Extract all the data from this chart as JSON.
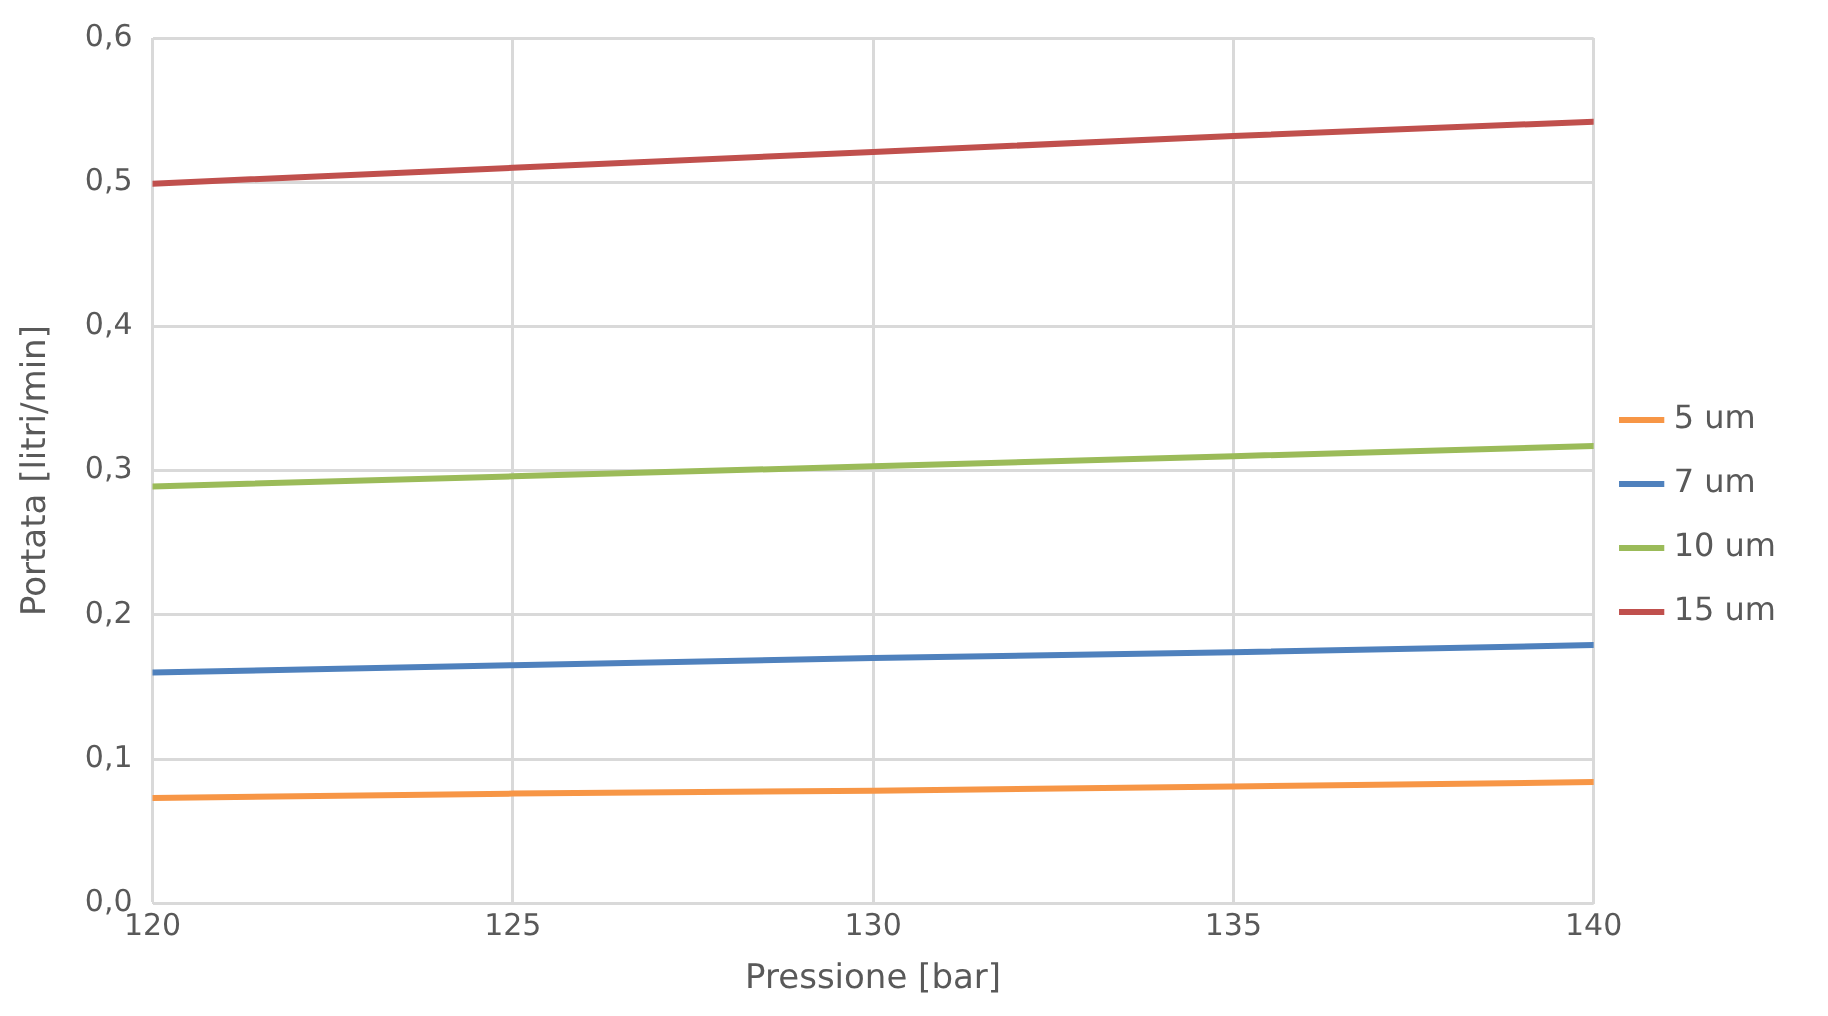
{
  "chart_data": {
    "type": "line",
    "xlabel": "Pressione [bar]",
    "ylabel": "Portata [litri/min]",
    "x": [
      120,
      125,
      130,
      135,
      140
    ],
    "series": [
      {
        "name": "5 um",
        "color": "#f79646",
        "values": [
          0.073,
          0.076,
          0.078,
          0.081,
          0.084
        ]
      },
      {
        "name": "7 um",
        "color": "#4f81bd",
        "values": [
          0.16,
          0.165,
          0.17,
          0.174,
          0.179
        ]
      },
      {
        "name": "10 um",
        "color": "#9bbb59",
        "values": [
          0.289,
          0.296,
          0.303,
          0.31,
          0.317
        ]
      },
      {
        "name": "15 um",
        "color": "#c0504d",
        "values": [
          0.499,
          0.51,
          0.521,
          0.532,
          0.542
        ]
      }
    ],
    "xlim": [
      120,
      140
    ],
    "xticks": [
      120,
      125,
      130,
      135,
      140
    ],
    "ylim": [
      0,
      0.6
    ],
    "yticks": [
      {
        "value": 0,
        "label": "0,0"
      },
      {
        "value": 0.1,
        "label": "0,1"
      },
      {
        "value": 0.2,
        "label": "0,2"
      },
      {
        "value": 0.3,
        "label": "0,3"
      },
      {
        "value": 0.4,
        "label": "0,4"
      },
      {
        "value": 0.5,
        "label": "0,5"
      },
      {
        "value": 0.6,
        "label": "0,6"
      }
    ],
    "grid": true,
    "legend": "right",
    "marker": "none",
    "line_style": "solid"
  }
}
